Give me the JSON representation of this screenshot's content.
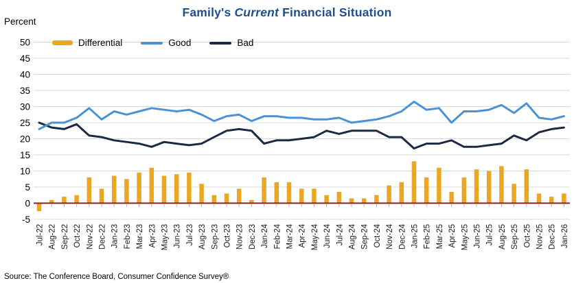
{
  "title": {
    "prefix": "Family's ",
    "emphasis": "Current",
    "suffix": " Financial Situation"
  },
  "y_axis_unit_label": "Percent",
  "source_note": "Source: The Conference Board, Consumer Confidence Survey®",
  "colors": {
    "title_blue": "#1D4F91",
    "differential_gold": "#EBA723",
    "good_blue": "#4B92D4",
    "bad_navy": "#1A2A44",
    "zero_axis_red": "#8B2320",
    "gridline_gray": "#D9D9D9",
    "tick_gray": "#ADADAD",
    "label_dark": "#1A1A1A"
  },
  "legend": [
    {
      "label": "Differential",
      "marker": "bar-swatch",
      "color": "#EBA723"
    },
    {
      "label": "Good",
      "marker": "line-swatch",
      "color": "#4B92D4"
    },
    {
      "label": "Bad",
      "marker": "line-swatch",
      "color": "#1A2A44"
    }
  ],
  "chart_data": {
    "type": "bar",
    "subtype": "combo-bar-plus-lines",
    "title": "Family's Current Financial Situation",
    "ylabel": "Percent",
    "ylim": [
      -5,
      50
    ],
    "ytick_step": 5,
    "grid": true,
    "legend_position": "top-left-inside",
    "categories": [
      "Jul-22",
      "Aug-22",
      "Sep-22",
      "Oct-22",
      "Nov-22",
      "Dec-22",
      "Jan-23",
      "Feb-23",
      "Mar-23",
      "Apr-23",
      "May-23",
      "Jun-23",
      "Jul-23",
      "Aug-23",
      "Sep-23",
      "Oct-23",
      "Nov-23",
      "Dec-23",
      "Jan-24",
      "Feb-24",
      "Mar-24",
      "Apr-24",
      "May-24",
      "Jun-24",
      "Jul-24",
      "Aug-24",
      "Sep-24",
      "Oct-24",
      "Nov-24",
      "Dec-24",
      "Jan-25",
      "Feb-25",
      "Mar-25",
      "Apr-25",
      "May-25",
      "Jun-25",
      "Jul-25",
      "Aug-25",
      "Sep-25",
      "Oct-25",
      "Nov-25",
      "Dec-25",
      "Jan-26"
    ],
    "series": [
      {
        "name": "Differential",
        "type": "bar",
        "color": "#EBA723",
        "values": [
          -2.5,
          1,
          2,
          2.5,
          8,
          4.5,
          8.5,
          7.5,
          9.5,
          11,
          8.5,
          9,
          9.5,
          6,
          2.5,
          3,
          4.5,
          1,
          8,
          6.5,
          6.5,
          4.5,
          4.5,
          2.5,
          3.5,
          1.5,
          1.5,
          2.5,
          5.5,
          6.5,
          13,
          8,
          11,
          3.5,
          8,
          10.5,
          10,
          11.5,
          6,
          10.5,
          3,
          2,
          3
        ]
      },
      {
        "name": "Good",
        "type": "line",
        "color": "#4B92D4",
        "values": [
          23,
          25,
          25,
          26.5,
          29.5,
          26,
          28.5,
          27.5,
          28.5,
          29.5,
          29,
          28.5,
          29,
          27.5,
          25.5,
          27,
          27.5,
          25.5,
          27,
          27,
          26.5,
          26.5,
          26,
          26,
          26.5,
          25,
          25.5,
          26,
          27,
          28.5,
          31.5,
          29,
          29.5,
          25,
          28.5,
          28.5,
          29,
          30.5,
          28,
          31,
          26.5,
          26,
          27
        ]
      },
      {
        "name": "Bad",
        "type": "line",
        "color": "#1A2A44",
        "values": [
          25,
          23.5,
          23,
          24.5,
          21,
          20.5,
          19.5,
          19,
          18.5,
          17.5,
          19,
          18.5,
          18,
          18.5,
          20.5,
          22.5,
          23,
          22.5,
          18.5,
          19.5,
          19.5,
          20,
          20.5,
          22.5,
          21.5,
          22.5,
          22.5,
          22.5,
          20.5,
          20.5,
          17,
          18.5,
          18.5,
          19.5,
          17.5,
          17.5,
          18,
          18.5,
          21,
          19.5,
          22,
          23,
          23.5
        ]
      }
    ]
  }
}
